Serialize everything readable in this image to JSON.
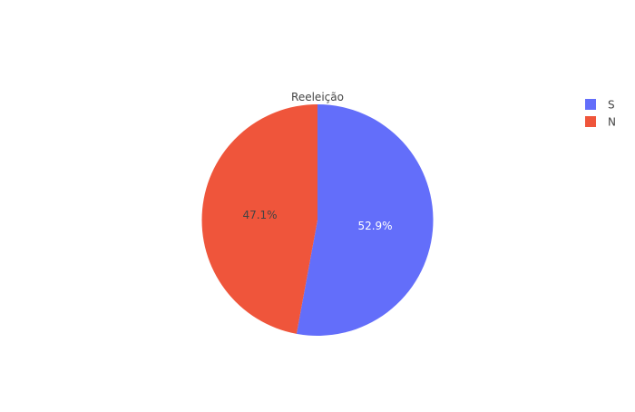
{
  "chart_data": {
    "type": "pie",
    "title": "Reeleição",
    "labels": [
      "S",
      "N"
    ],
    "values": [
      52.9,
      47.1
    ],
    "value_labels": [
      "52.9%",
      "47.1%"
    ],
    "colors": [
      "#636efa",
      "#ef553b"
    ],
    "label_colors": [
      "#ffffff",
      "#444444"
    ],
    "direction": "clockwise",
    "start": "top",
    "legend_position": "top-right"
  }
}
